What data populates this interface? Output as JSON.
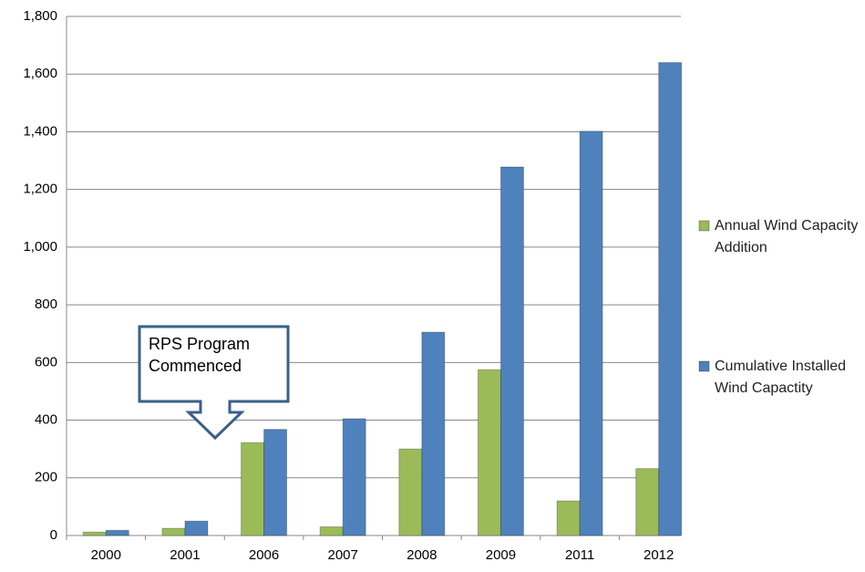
{
  "chart_data": {
    "type": "bar",
    "categories": [
      "2000",
      "2001",
      "2006",
      "2007",
      "2008",
      "2009",
      "2011",
      "2012"
    ],
    "series": [
      {
        "name": "Annual Wind Capacity Addition",
        "color": "#9bbb59",
        "values": [
          12,
          25,
          322,
          30,
          300,
          575,
          120,
          232
        ]
      },
      {
        "name": "Cumulative Installed Wind Capactity",
        "color": "#4f81bd",
        "values": [
          18,
          50,
          368,
          405,
          705,
          1278,
          1402,
          1640
        ]
      }
    ],
    "ylim": [
      0,
      1800
    ],
    "yticks": [
      0,
      200,
      400,
      600,
      800,
      {
        "value": 1000,
        "label": "1,000"
      },
      {
        "value": 1200,
        "label": "1,200"
      },
      {
        "value": 1400,
        "label": "1,400"
      },
      {
        "value": 1600,
        "label": "1,600"
      },
      {
        "value": 1800,
        "label": "1,800"
      }
    ],
    "grid": true,
    "legend": "right",
    "annotation": "RPS Program Commenced"
  }
}
